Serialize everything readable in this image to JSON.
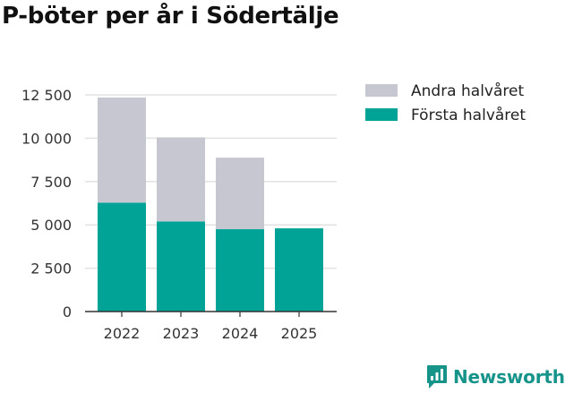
{
  "chart_data": {
    "type": "bar",
    "stacked": true,
    "title": "P-böter per år i Södertälje",
    "categories": [
      "2022",
      "2023",
      "2024",
      "2025"
    ],
    "series": [
      {
        "name": "Första halvåret",
        "color": "#00a396",
        "values": [
          6280,
          5200,
          4750,
          4800
        ]
      },
      {
        "name": "Andra halvåret",
        "color": "#c7c7d1",
        "values": [
          6070,
          4850,
          4130,
          0
        ]
      }
    ],
    "legend_order": [
      1,
      0
    ],
    "ylim": [
      0,
      12500
    ],
    "yticks": [
      0,
      2500,
      5000,
      7500,
      10000,
      12500
    ],
    "ytick_labels": [
      "0",
      "2 500",
      "5 000",
      "7 500",
      "10 000",
      "12 500"
    ],
    "xlabel": "",
    "ylabel": "",
    "grid": true,
    "legend_position": "top-right"
  },
  "branding": {
    "name": "Newsworthy",
    "color": "#17948a"
  }
}
